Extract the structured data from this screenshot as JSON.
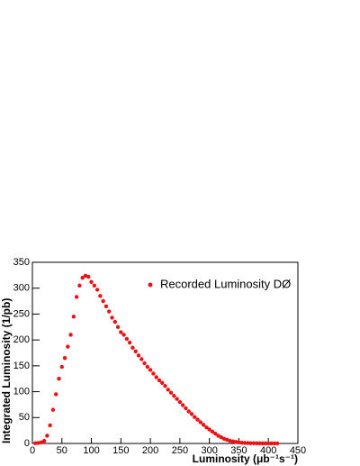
{
  "chart_data": {
    "type": "scatter",
    "xlabel": "Luminosity (μb⁻¹s⁻¹)",
    "ylabel": "Integrated Luminosity (1/pb)",
    "xlim": [
      0,
      450
    ],
    "ylim": [
      0,
      350
    ],
    "xticks": [
      0,
      50,
      100,
      150,
      200,
      250,
      300,
      350,
      400,
      450
    ],
    "yticks": [
      0,
      50,
      100,
      150,
      200,
      250,
      300,
      350
    ],
    "legend": "upper right",
    "series": [
      {
        "name": "Recorded Luminosity  DØ",
        "color": "#ee1111",
        "x": [
          5,
          10,
          15,
          20,
          25,
          30,
          35,
          40,
          45,
          50,
          55,
          60,
          65,
          70,
          75,
          80,
          85,
          90,
          95,
          100,
          105,
          110,
          115,
          120,
          125,
          130,
          135,
          140,
          145,
          150,
          155,
          160,
          165,
          170,
          175,
          180,
          185,
          190,
          195,
          200,
          205,
          210,
          215,
          220,
          225,
          230,
          235,
          240,
          245,
          250,
          255,
          260,
          265,
          270,
          275,
          280,
          285,
          290,
          295,
          300,
          305,
          310,
          315,
          320,
          325,
          330,
          335,
          340,
          345,
          350,
          355,
          360,
          365,
          370,
          375,
          380,
          385,
          390,
          395,
          400,
          405,
          410,
          415
        ],
        "values": [
          0.5,
          1,
          2,
          5,
          15,
          35,
          65,
          95,
          125,
          148,
          165,
          187,
          210,
          245,
          283,
          305,
          320,
          324,
          322,
          312,
          305,
          297,
          285,
          275,
          265,
          255,
          243,
          235,
          225,
          215,
          210,
          202,
          195,
          185,
          178,
          170,
          163,
          155,
          148,
          142,
          135,
          128,
          122,
          117,
          111,
          104,
          98,
          92,
          86,
          80,
          74,
          68,
          62,
          57,
          51,
          46,
          41,
          36,
          31,
          27,
          23,
          19,
          15,
          12,
          9,
          7,
          5,
          4,
          3,
          2,
          1.5,
          1,
          0.8,
          0.6,
          0.5,
          0.4,
          0.3,
          0.2,
          0.2,
          0.1,
          0.1,
          0.1,
          0.1
        ]
      }
    ]
  }
}
